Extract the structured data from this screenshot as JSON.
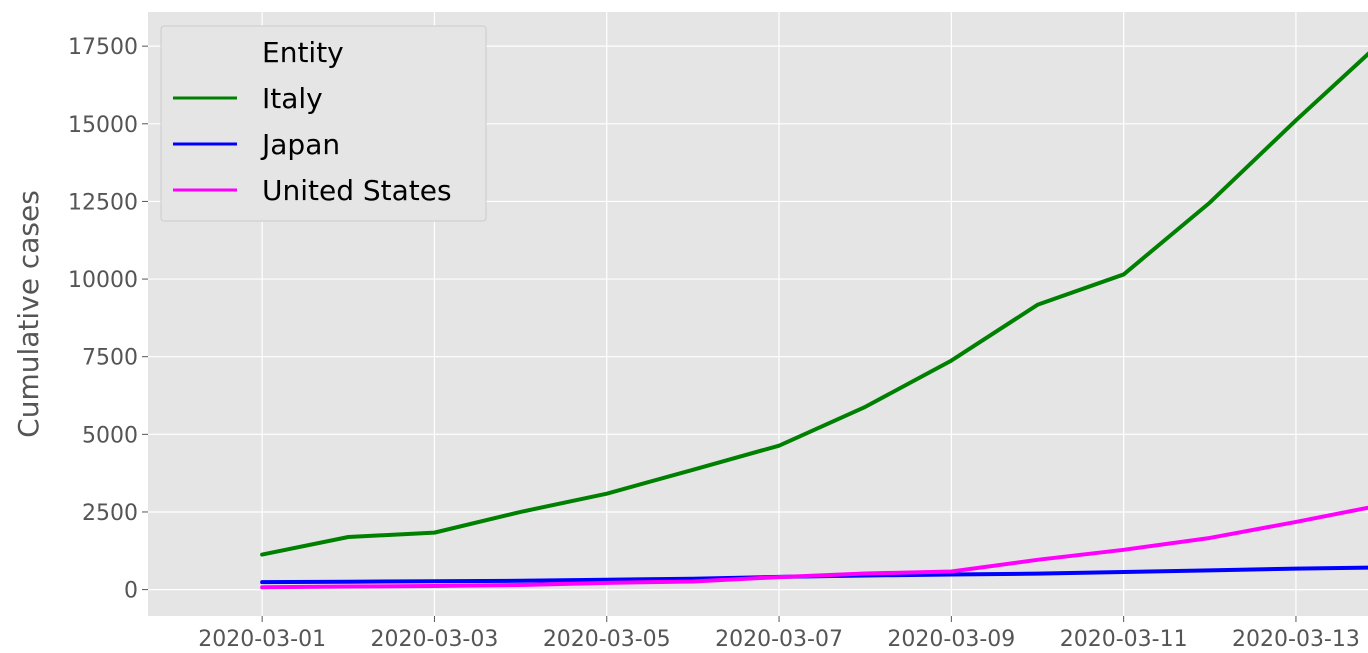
{
  "chart_data": {
    "type": "line",
    "xlabel": "",
    "ylabel": "Cumulative cases",
    "x": [
      "2020-03-01",
      "2020-03-02",
      "2020-03-03",
      "2020-03-04",
      "2020-03-05",
      "2020-03-06",
      "2020-03-07",
      "2020-03-08",
      "2020-03-09",
      "2020-03-10",
      "2020-03-11",
      "2020-03-12",
      "2020-03-13",
      "2020-03-14"
    ],
    "x_tick_labels": [
      "2020-03-01",
      "2020-03-03",
      "2020-03-05",
      "2020-03-07",
      "2020-03-09",
      "2020-03-11",
      "2020-03-13"
    ],
    "y_tick_labels": [
      "0",
      "2500",
      "5000",
      "7500",
      "10000",
      "12500",
      "15000",
      "17500"
    ],
    "y_ticks": [
      0,
      2500,
      5000,
      7500,
      10000,
      12500,
      15000,
      17500
    ],
    "ylim": [
      -850,
      18600
    ],
    "xlim": [
      "2020-02-29",
      "2020-03-14"
    ],
    "grid": true,
    "legend": {
      "title": "Entity",
      "placement": "top-left"
    },
    "series": [
      {
        "name": "Italy",
        "color": "#008000",
        "values": [
          1128,
          1694,
          1835,
          2502,
          3089,
          3858,
          4636,
          5883,
          7375,
          9172,
          10149,
          12462,
          15113,
          17660
        ]
      },
      {
        "name": "Japan",
        "color": "#0000ff",
        "values": [
          239,
          254,
          268,
          284,
          317,
          349,
          408,
          455,
          488,
          514,
          568,
          620,
          675,
          716
        ]
      },
      {
        "name": "United States",
        "color": "#ff00ff",
        "values": [
          74,
          98,
          118,
          149,
          217,
          262,
          402,
          518,
          583,
          959,
          1281,
          1663,
          2179,
          2726
        ]
      }
    ]
  }
}
